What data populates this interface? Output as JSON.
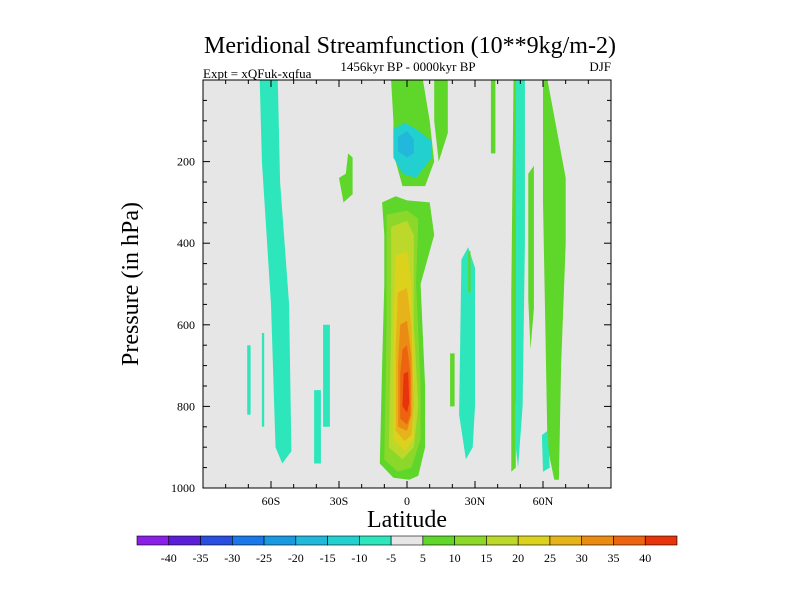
{
  "chart_data": {
    "type": "contour",
    "title": "Meridional Streamfunction (10**9kg/m-2)",
    "subtitle_left": "Expt = xQFuk-xqfua",
    "subtitle_center": "1456kyr BP - 0000kyr BP",
    "subtitle_right": "DJF",
    "xlabel": "Latitude",
    "ylabel": "Pressure (in hPa)",
    "xlim": [
      -90,
      90
    ],
    "ylim": [
      1000,
      0
    ],
    "y_axis_inverted": true,
    "x_ticks": [
      {
        "value": -60,
        "label": "60S"
      },
      {
        "value": -30,
        "label": "30S"
      },
      {
        "value": 0,
        "label": "0"
      },
      {
        "value": 30,
        "label": "30N"
      },
      {
        "value": 60,
        "label": "60N"
      }
    ],
    "y_ticks": [
      {
        "value": 200,
        "label": "200"
      },
      {
        "value": 400,
        "label": "400"
      },
      {
        "value": 600,
        "label": "600"
      },
      {
        "value": 800,
        "label": "800"
      },
      {
        "value": 1000,
        "label": "1000"
      }
    ],
    "colorbar": {
      "levels": [
        "-40",
        "-35",
        "-30",
        "-25",
        "-20",
        "-15",
        "-10",
        "-5",
        "5",
        "10",
        "15",
        "20",
        "25",
        "30",
        "35",
        "40"
      ],
      "colors": [
        "#8a1fe6",
        "#5a1fd6",
        "#2a4fe0",
        "#1a78e8",
        "#1a98e0",
        "#22b8dc",
        "#22d0d0",
        "#2ee6bc",
        "#e6e6e6",
        "#5ed62a",
        "#8cd82a",
        "#bcd82a",
        "#dcd21e",
        "#e6b41a",
        "#ea8c14",
        "#ec6410",
        "#e8340c"
      ]
    },
    "background_color": "#e6e6e6",
    "regions": [
      {
        "name": "band-60s",
        "color": "#2ee6bc",
        "points": [
          [
            -65,
            0
          ],
          [
            -57,
            0
          ],
          [
            -56,
            250
          ],
          [
            -52,
            550
          ],
          [
            -51,
            910
          ],
          [
            -55,
            940
          ],
          [
            -58,
            900
          ],
          [
            -60,
            550
          ],
          [
            -64,
            200
          ]
        ]
      },
      {
        "name": "band-69s",
        "color": "#2ee6bc",
        "points": [
          [
            -70.5,
            650
          ],
          [
            -69,
            650
          ],
          [
            -69,
            820
          ],
          [
            -70.5,
            820
          ]
        ]
      },
      {
        "name": "band-62s",
        "color": "#2ee6bc",
        "points": [
          [
            -64,
            620
          ],
          [
            -63,
            620
          ],
          [
            -63,
            850
          ],
          [
            -64,
            850
          ]
        ]
      },
      {
        "name": "band-35s",
        "color": "#2ee6bc",
        "points": [
          [
            -37,
            600
          ],
          [
            -34,
            600
          ],
          [
            -34,
            850
          ],
          [
            -37,
            850
          ]
        ]
      },
      {
        "name": "band-38s-low",
        "color": "#2ee6bc",
        "points": [
          [
            -41,
            760
          ],
          [
            -38,
            760
          ],
          [
            -38,
            940
          ],
          [
            -41,
            940
          ]
        ]
      },
      {
        "name": "band-28s",
        "color": "#5ed62a",
        "points": [
          [
            -30,
            240
          ],
          [
            -27,
            230
          ],
          [
            -26,
            180
          ],
          [
            -24,
            190
          ],
          [
            -24,
            280
          ],
          [
            -28,
            300
          ]
        ]
      },
      {
        "name": "band-upper-eq",
        "color": "#5ed62a",
        "points": [
          [
            -7,
            0
          ],
          [
            7,
            0
          ],
          [
            10,
            100
          ],
          [
            12,
            200
          ],
          [
            8,
            260
          ],
          [
            -2,
            260
          ],
          [
            -6,
            180
          ],
          [
            -6,
            100
          ]
        ]
      },
      {
        "name": "band-upper-eq-blue",
        "color": "#22d0d0",
        "points": [
          [
            -6,
            120
          ],
          [
            -1,
            105
          ],
          [
            4,
            120
          ],
          [
            11,
            150
          ],
          [
            11,
            190
          ],
          [
            4,
            240
          ],
          [
            -2,
            230
          ],
          [
            -6,
            190
          ]
        ]
      },
      {
        "name": "band-upper-eq-core",
        "color": "#22b8dc",
        "points": [
          [
            -4,
            140
          ],
          [
            0,
            125
          ],
          [
            3,
            145
          ],
          [
            3,
            180
          ],
          [
            0,
            190
          ],
          [
            -4,
            175
          ]
        ]
      },
      {
        "name": "band-14n",
        "color": "#5ed62a",
        "points": [
          [
            12,
            0
          ],
          [
            18,
            0
          ],
          [
            18,
            130
          ],
          [
            14,
            200
          ],
          [
            12,
            100
          ]
        ]
      },
      {
        "name": "band-27n",
        "color": "#2ee6bc",
        "points": [
          [
            24,
            440
          ],
          [
            27,
            410
          ],
          [
            30,
            460
          ],
          [
            30,
            800
          ],
          [
            29,
            900
          ],
          [
            26,
            930
          ],
          [
            23,
            820
          ]
        ]
      },
      {
        "name": "band-38n",
        "color": "#5ed62a",
        "points": [
          [
            37,
            0
          ],
          [
            39,
            0
          ],
          [
            39,
            180
          ],
          [
            37,
            180
          ]
        ]
      },
      {
        "name": "band-25n-low",
        "color": "#5ed62a",
        "points": [
          [
            19,
            670
          ],
          [
            21,
            670
          ],
          [
            21,
            800
          ],
          [
            19,
            800
          ]
        ]
      },
      {
        "name": "band-28n-mid",
        "color": "#5ed62a",
        "points": [
          [
            27,
            420
          ],
          [
            28,
            420
          ],
          [
            28,
            520
          ],
          [
            27,
            520
          ]
        ]
      },
      {
        "name": "band-45n",
        "color": "#5ed62a",
        "points": [
          [
            47,
            0
          ],
          [
            49,
            0
          ],
          [
            49,
            550
          ],
          [
            48,
            800
          ],
          [
            48,
            950
          ],
          [
            46,
            960
          ],
          [
            46,
            520
          ]
        ]
      },
      {
        "name": "band-52n",
        "color": "#2ee6bc",
        "points": [
          [
            48,
            0
          ],
          [
            52,
            0
          ],
          [
            52,
            400
          ],
          [
            51,
            800
          ],
          [
            49,
            950
          ],
          [
            48,
            900
          ]
        ]
      },
      {
        "name": "band-55n",
        "color": "#5ed62a",
        "points": [
          [
            53.5,
            230
          ],
          [
            56,
            210
          ],
          [
            56,
            560
          ],
          [
            54.5,
            660
          ],
          [
            53.5,
            540
          ]
        ]
      },
      {
        "name": "band-62n",
        "color": "#5ed62a",
        "points": [
          [
            60,
            0
          ],
          [
            62,
            0
          ],
          [
            66,
            120
          ],
          [
            70,
            240
          ],
          [
            70,
            400
          ],
          [
            68,
            700
          ],
          [
            67,
            980
          ],
          [
            65,
            980
          ],
          [
            62,
            900
          ],
          [
            61,
            600
          ],
          [
            60,
            300
          ]
        ]
      },
      {
        "name": "band-63n-low",
        "color": "#2ee6bc",
        "points": [
          [
            59.5,
            870
          ],
          [
            62,
            860
          ],
          [
            63,
            950
          ],
          [
            60,
            960
          ]
        ]
      },
      {
        "name": "band-lower-eq-green",
        "color": "#5ed62a",
        "points": [
          [
            -11,
            300
          ],
          [
            -5,
            285
          ],
          [
            0,
            295
          ],
          [
            10,
            300
          ],
          [
            12,
            380
          ],
          [
            6,
            500
          ],
          [
            8,
            750
          ],
          [
            8,
            900
          ],
          [
            5,
            970
          ],
          [
            1,
            980
          ],
          [
            -6,
            975
          ],
          [
            -12,
            940
          ],
          [
            -11,
            700
          ],
          [
            -10,
            500
          ],
          [
            -10,
            380
          ]
        ]
      },
      {
        "name": "band-lower-eq-15",
        "color": "#8cd82a",
        "points": [
          [
            -9,
            330
          ],
          [
            0,
            320
          ],
          [
            5,
            340
          ],
          [
            4,
            500
          ],
          [
            6,
            750
          ],
          [
            6,
            880
          ],
          [
            2,
            950
          ],
          [
            -4,
            960
          ],
          [
            -10,
            930
          ],
          [
            -9,
            600
          ]
        ]
      },
      {
        "name": "band-lower-eq-20",
        "color": "#bcd82a",
        "points": [
          [
            -7,
            360
          ],
          [
            0,
            345
          ],
          [
            3,
            380
          ],
          [
            3,
            600
          ],
          [
            5,
            800
          ],
          [
            3,
            900
          ],
          [
            -2,
            930
          ],
          [
            -8,
            900
          ],
          [
            -7,
            600
          ]
        ]
      },
      {
        "name": "band-lower-eq-25",
        "color": "#dcd21e",
        "points": [
          [
            -5,
            430
          ],
          [
            0,
            420
          ],
          [
            2,
            500
          ],
          [
            3,
            750
          ],
          [
            3,
            880
          ],
          [
            -1,
            910
          ],
          [
            -6,
            880
          ],
          [
            -6,
            600
          ]
        ]
      },
      {
        "name": "band-lower-eq-30",
        "color": "#e6b41a",
        "points": [
          [
            -4,
            520
          ],
          [
            0,
            510
          ],
          [
            2,
            600
          ],
          [
            3,
            800
          ],
          [
            2,
            870
          ],
          [
            -1,
            885
          ],
          [
            -5,
            860
          ],
          [
            -5,
            650
          ]
        ]
      },
      {
        "name": "band-lower-eq-35",
        "color": "#ea8c14",
        "points": [
          [
            -3,
            600
          ],
          [
            0,
            590
          ],
          [
            2,
            680
          ],
          [
            2,
            820
          ],
          [
            0,
            860
          ],
          [
            -4,
            850
          ],
          [
            -4,
            700
          ]
        ]
      },
      {
        "name": "band-lower-eq-40",
        "color": "#ec6410",
        "points": [
          [
            -2,
            660
          ],
          [
            0,
            650
          ],
          [
            1.5,
            720
          ],
          [
            1.5,
            820
          ],
          [
            0,
            845
          ],
          [
            -3,
            830
          ],
          [
            -3,
            720
          ]
        ]
      },
      {
        "name": "band-lower-eq-45",
        "color": "#e8340c",
        "points": [
          [
            -1.5,
            720
          ],
          [
            0.5,
            715
          ],
          [
            1,
            790
          ],
          [
            0,
            815
          ],
          [
            -2,
            800
          ]
        ]
      }
    ]
  }
}
